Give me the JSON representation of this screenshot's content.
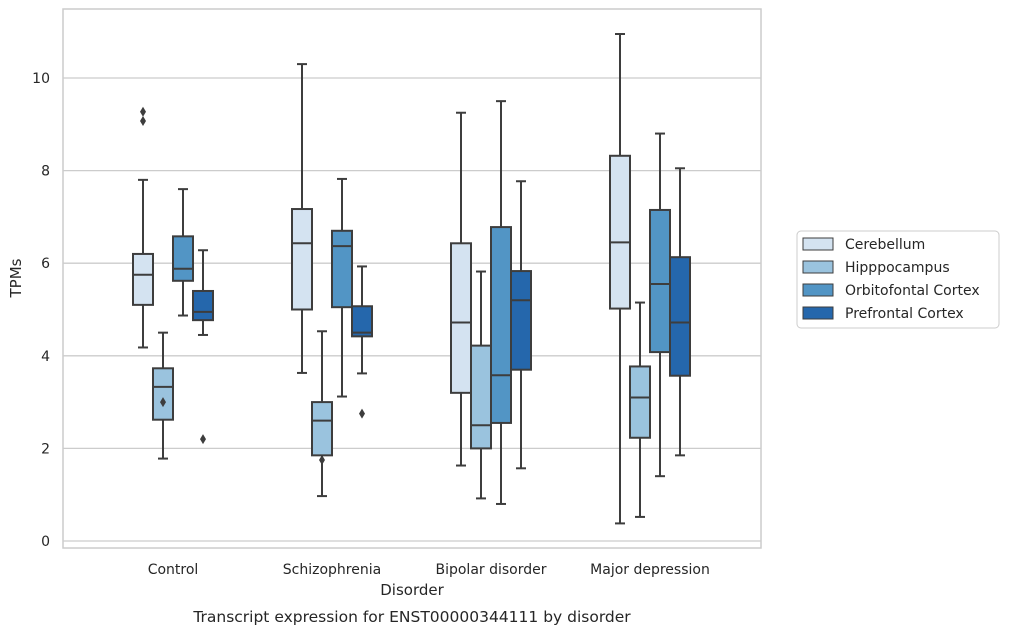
{
  "chart_data": {
    "type": "boxplot",
    "caption": "Transcript expression for ENST00000344111 by disorder",
    "xlabel": "Disorder",
    "ylabel": "TPMs",
    "ylim": [
      -0.15,
      11.5
    ],
    "yticks": [
      0,
      2,
      4,
      6,
      8,
      10
    ],
    "grid": "horizontal",
    "legend_position": "right-outside",
    "categories": [
      "Control",
      "Schizophrenia",
      "Bipolar disorder",
      "Major depression"
    ],
    "series": [
      {
        "name": "Cerebellum",
        "color": "#d4e3f1",
        "boxes": [
          {
            "whislo": 4.18,
            "q1": 5.1,
            "med": 5.75,
            "q3": 6.2,
            "whishi": 7.8,
            "fliers": [
              9.07,
              9.27
            ]
          },
          {
            "whislo": 3.63,
            "q1": 5.0,
            "med": 6.43,
            "q3": 7.17,
            "whishi": 10.3,
            "fliers": []
          },
          {
            "whislo": 1.63,
            "q1": 3.2,
            "med": 4.72,
            "q3": 6.43,
            "whishi": 9.25,
            "fliers": []
          },
          {
            "whislo": 0.38,
            "q1": 5.02,
            "med": 6.45,
            "q3": 8.32,
            "whishi": 10.95,
            "fliers": []
          }
        ]
      },
      {
        "name": "Hipppocampus",
        "color": "#9ac3de",
        "boxes": [
          {
            "whislo": 1.78,
            "q1": 2.62,
            "med": 3.33,
            "q3": 3.73,
            "whishi": 4.5,
            "fliers": [
              3.0
            ]
          },
          {
            "whislo": 0.97,
            "q1": 1.85,
            "med": 2.6,
            "q3": 3.0,
            "whishi": 4.53,
            "fliers": [
              1.75
            ]
          },
          {
            "whislo": 0.92,
            "q1": 2.0,
            "med": 2.5,
            "q3": 4.22,
            "whishi": 5.82,
            "fliers": []
          },
          {
            "whislo": 0.52,
            "q1": 2.23,
            "med": 3.1,
            "q3": 3.77,
            "whishi": 5.15,
            "fliers": []
          }
        ]
      },
      {
        "name": "Orbitofontal Cortex",
        "color": "#5295c5",
        "boxes": [
          {
            "whislo": 4.87,
            "q1": 5.62,
            "med": 5.88,
            "q3": 6.58,
            "whishi": 7.6,
            "fliers": []
          },
          {
            "whislo": 3.12,
            "q1": 5.05,
            "med": 6.37,
            "q3": 6.7,
            "whishi": 7.82,
            "fliers": []
          },
          {
            "whislo": 0.8,
            "q1": 2.55,
            "med": 3.58,
            "q3": 6.78,
            "whishi": 9.5,
            "fliers": []
          },
          {
            "whislo": 1.4,
            "q1": 4.08,
            "med": 5.55,
            "q3": 7.15,
            "whishi": 8.8,
            "fliers": []
          }
        ]
      },
      {
        "name": "Prefrontal Cortex",
        "color": "#2567ac",
        "boxes": [
          {
            "whislo": 4.45,
            "q1": 4.77,
            "med": 4.95,
            "q3": 5.4,
            "whishi": 6.28,
            "fliers": [
              2.2
            ]
          },
          {
            "whislo": 3.62,
            "q1": 4.42,
            "med": 4.5,
            "q3": 5.07,
            "whishi": 5.93,
            "fliers": [
              2.75
            ]
          },
          {
            "whislo": 1.57,
            "q1": 3.7,
            "med": 5.2,
            "q3": 5.83,
            "whishi": 7.77,
            "fliers": []
          },
          {
            "whislo": 1.85,
            "q1": 3.57,
            "med": 4.72,
            "q3": 6.13,
            "whishi": 8.05,
            "fliers": []
          }
        ]
      }
    ]
  },
  "colors": {
    "grid": "#cccccc",
    "frame": "#cccccc",
    "box_edge": "#3d3d3d"
  }
}
